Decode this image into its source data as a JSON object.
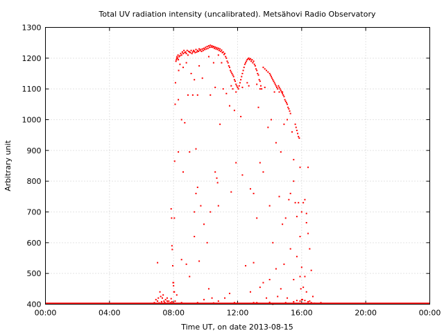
{
  "chart_data": {
    "type": "scatter",
    "title": "Total UV radiation intensity (uncalibrated). Metsähovi Radio Observatory",
    "xlabel": "Time UT, on date 2013-08-15",
    "ylabel": "Arbitrary unit",
    "xlim": [
      0,
      24
    ],
    "ylim": [
      400,
      1300
    ],
    "x_ticks": [
      0,
      4,
      8,
      12,
      16,
      20,
      24
    ],
    "x_tick_labels": [
      "00:00",
      "04:00",
      "08:00",
      "12:00",
      "16:00",
      "20:00",
      "00:00"
    ],
    "y_ticks": [
      400,
      500,
      600,
      700,
      800,
      900,
      1000,
      1100,
      1200,
      1300
    ],
    "grid": true,
    "series_color": "#ff0000",
    "baseline": {
      "x_start": 0,
      "x_end": 24,
      "value": 400
    },
    "points": [
      [
        6.8,
        405
      ],
      [
        6.9,
        415
      ],
      [
        7.0,
        410
      ],
      [
        7.05,
        420
      ],
      [
        7.1,
        404
      ],
      [
        7.15,
        440
      ],
      [
        7.2,
        425
      ],
      [
        7.25,
        408
      ],
      [
        7.3,
        402
      ],
      [
        7.35,
        430
      ],
      [
        7.4,
        410
      ],
      [
        7.45,
        406
      ],
      [
        7.5,
        415
      ],
      [
        7.55,
        402
      ],
      [
        7.6,
        420
      ],
      [
        7.65,
        404
      ],
      [
        7.7,
        410
      ],
      [
        7.75,
        402
      ],
      [
        7.8,
        405
      ],
      [
        7.85,
        418
      ],
      [
        7.9,
        408
      ],
      [
        7.95,
        402
      ],
      [
        8.0,
        404
      ],
      [
        8.05,
        440
      ],
      [
        8.1,
        410
      ],
      [
        8.15,
        402
      ],
      [
        7.0,
        535
      ],
      [
        7.3,
        420
      ],
      [
        7.6,
        410
      ],
      [
        7.85,
        710
      ],
      [
        7.88,
        680
      ],
      [
        7.9,
        590
      ],
      [
        7.92,
        578
      ],
      [
        7.95,
        525
      ],
      [
        7.97,
        470
      ],
      [
        8.0,
        460
      ],
      [
        8.02,
        440
      ],
      [
        8.05,
        680
      ],
      [
        8.07,
        865
      ],
      [
        8.1,
        1050
      ],
      [
        8.12,
        1120
      ],
      [
        8.15,
        1190
      ],
      [
        8.18,
        1195
      ],
      [
        8.2,
        1200
      ],
      [
        8.22,
        1205
      ],
      [
        8.25,
        1200
      ],
      [
        8.28,
        1210
      ],
      [
        8.3,
        1195
      ],
      [
        8.32,
        1160
      ],
      [
        8.35,
        1205
      ],
      [
        8.4,
        1208
      ],
      [
        8.45,
        1215
      ],
      [
        8.5,
        1210
      ],
      [
        8.55,
        1220
      ],
      [
        8.6,
        1215
      ],
      [
        8.65,
        1225
      ],
      [
        8.7,
        1218
      ],
      [
        8.75,
        1220
      ],
      [
        8.8,
        1215
      ],
      [
        8.85,
        1225
      ],
      [
        8.9,
        1210
      ],
      [
        8.95,
        1222
      ],
      [
        9.0,
        1220
      ],
      [
        9.05,
        1218
      ],
      [
        9.1,
        1225
      ],
      [
        9.15,
        1215
      ],
      [
        9.2,
        1220
      ],
      [
        9.25,
        1225
      ],
      [
        9.3,
        1222
      ],
      [
        9.35,
        1218
      ],
      [
        9.4,
        1228
      ],
      [
        9.45,
        1220
      ],
      [
        9.5,
        1225
      ],
      [
        9.55,
        1222
      ],
      [
        9.6,
        1230
      ],
      [
        9.65,
        1225
      ],
      [
        9.7,
        1228
      ],
      [
        9.75,
        1222
      ],
      [
        9.8,
        1230
      ],
      [
        9.85,
        1225
      ],
      [
        9.9,
        1232
      ],
      [
        9.95,
        1228
      ],
      [
        10.0,
        1235
      ],
      [
        10.05,
        1230
      ],
      [
        10.1,
        1238
      ],
      [
        10.15,
        1232
      ],
      [
        10.2,
        1240
      ],
      [
        10.25,
        1235
      ],
      [
        10.3,
        1242
      ],
      [
        10.35,
        1236
      ],
      [
        10.4,
        1240
      ],
      [
        10.45,
        1235
      ],
      [
        10.5,
        1238
      ],
      [
        10.55,
        1232
      ],
      [
        10.6,
        1236
      ],
      [
        10.65,
        1230
      ],
      [
        10.7,
        1234
      ],
      [
        10.75,
        1228
      ],
      [
        10.8,
        1232
      ],
      [
        10.85,
        1225
      ],
      [
        10.9,
        1230
      ],
      [
        10.95,
        1222
      ],
      [
        11.0,
        1226
      ],
      [
        11.05,
        1218
      ],
      [
        11.1,
        1220
      ],
      [
        11.15,
        1212
      ],
      [
        11.2,
        1215
      ],
      [
        11.25,
        1205
      ],
      [
        11.3,
        1200
      ],
      [
        11.35,
        1190
      ],
      [
        11.4,
        1185
      ],
      [
        11.45,
        1175
      ],
      [
        11.5,
        1170
      ],
      [
        11.55,
        1160
      ],
      [
        11.6,
        1155
      ],
      [
        11.65,
        1150
      ],
      [
        11.7,
        1145
      ],
      [
        11.75,
        1140
      ],
      [
        11.8,
        1130
      ],
      [
        11.85,
        1125
      ],
      [
        11.9,
        1115
      ],
      [
        11.95,
        1110
      ],
      [
        12.0,
        1105
      ],
      [
        12.05,
        1100
      ],
      [
        12.1,
        1110
      ],
      [
        12.15,
        1120
      ],
      [
        12.2,
        1130
      ],
      [
        12.25,
        1140
      ],
      [
        12.3,
        1150
      ],
      [
        12.35,
        1160
      ],
      [
        12.4,
        1170
      ],
      [
        12.45,
        1180
      ],
      [
        12.5,
        1185
      ],
      [
        12.55,
        1190
      ],
      [
        12.6,
        1195
      ],
      [
        12.65,
        1198
      ],
      [
        12.7,
        1200
      ],
      [
        12.75,
        1195
      ],
      [
        12.8,
        1198
      ],
      [
        12.85,
        1190
      ],
      [
        12.9,
        1195
      ],
      [
        12.95,
        1185
      ],
      [
        13.0,
        1190
      ],
      [
        13.05,
        1180
      ],
      [
        13.1,
        1175
      ],
      [
        13.15,
        1165
      ],
      [
        13.2,
        1160
      ],
      [
        13.25,
        1150
      ],
      [
        13.3,
        1145
      ],
      [
        13.35,
        1130
      ],
      [
        13.4,
        1125
      ],
      [
        13.45,
        1110
      ],
      [
        13.5,
        1100
      ],
      [
        11.6,
        1110
      ],
      [
        11.7,
        1100
      ],
      [
        11.9,
        1090
      ],
      [
        12.3,
        1105
      ],
      [
        12.6,
        1120
      ],
      [
        13.2,
        1115
      ],
      [
        13.4,
        1100
      ],
      [
        13.6,
        1170
      ],
      [
        13.7,
        1165
      ],
      [
        13.8,
        1160
      ],
      [
        13.9,
        1155
      ],
      [
        14.0,
        1150
      ],
      [
        14.05,
        1145
      ],
      [
        14.1,
        1140
      ],
      [
        14.15,
        1135
      ],
      [
        14.2,
        1130
      ],
      [
        14.25,
        1125
      ],
      [
        14.3,
        1120
      ],
      [
        14.35,
        1115
      ],
      [
        14.4,
        1110
      ],
      [
        14.45,
        1105
      ],
      [
        14.5,
        1100
      ],
      [
        14.55,
        1110
      ],
      [
        14.6,
        1105
      ],
      [
        14.65,
        1100
      ],
      [
        14.7,
        1095
      ],
      [
        14.75,
        1090
      ],
      [
        14.8,
        1085
      ],
      [
        14.85,
        1080
      ],
      [
        14.9,
        1075
      ],
      [
        14.95,
        1065
      ],
      [
        15.0,
        1060
      ],
      [
        15.05,
        1055
      ],
      [
        15.1,
        1050
      ],
      [
        15.15,
        1040
      ],
      [
        15.2,
        1035
      ],
      [
        15.25,
        1028
      ],
      [
        15.3,
        1020
      ],
      [
        14.3,
        1090
      ],
      [
        14.6,
        1090
      ],
      [
        14.8,
        1090
      ],
      [
        15.6,
        985
      ],
      [
        15.65,
        975
      ],
      [
        15.7,
        965
      ],
      [
        15.75,
        955
      ],
      [
        15.8,
        945
      ],
      [
        15.85,
        940
      ],
      [
        8.4,
        1180
      ],
      [
        8.6,
        1170
      ],
      [
        8.8,
        1185
      ],
      [
        9.1,
        1150
      ],
      [
        9.3,
        1130
      ],
      [
        9.6,
        1175
      ],
      [
        9.8,
        1135
      ],
      [
        10.2,
        1205
      ],
      [
        10.5,
        1185
      ],
      [
        10.8,
        1210
      ],
      [
        11.0,
        1185
      ],
      [
        8.3,
        1065
      ],
      [
        8.5,
        1000
      ],
      [
        8.7,
        990
      ],
      [
        8.9,
        1080
      ],
      [
        9.2,
        1080
      ],
      [
        9.4,
        905
      ],
      [
        9.5,
        1080
      ],
      [
        9.0,
        895
      ],
      [
        10.3,
        1080
      ],
      [
        10.6,
        1105
      ],
      [
        10.9,
        985
      ],
      [
        11.1,
        1100
      ],
      [
        11.3,
        1085
      ],
      [
        11.5,
        1045
      ],
      [
        11.8,
        1030
      ],
      [
        12.2,
        1010
      ],
      [
        12.7,
        1110
      ],
      [
        13.3,
        1040
      ],
      [
        13.7,
        1105
      ],
      [
        13.9,
        975
      ],
      [
        14.1,
        1000
      ],
      [
        14.4,
        925
      ],
      [
        14.7,
        895
      ],
      [
        14.9,
        985
      ],
      [
        15.1,
        1000
      ],
      [
        15.4,
        960
      ],
      [
        15.5,
        870
      ],
      [
        15.9,
        845
      ],
      [
        16.1,
        730
      ],
      [
        16.3,
        695
      ],
      [
        16.4,
        845
      ],
      [
        8.3,
        895
      ],
      [
        8.6,
        830
      ],
      [
        9.3,
        700
      ],
      [
        9.4,
        760
      ],
      [
        9.5,
        780
      ],
      [
        9.7,
        720
      ],
      [
        9.9,
        660
      ],
      [
        10.1,
        600
      ],
      [
        10.3,
        700
      ],
      [
        10.6,
        830
      ],
      [
        10.7,
        810
      ],
      [
        10.75,
        795
      ],
      [
        10.8,
        720
      ],
      [
        11.6,
        765
      ],
      [
        11.9,
        860
      ],
      [
        12.3,
        820
      ],
      [
        12.8,
        775
      ],
      [
        13.0,
        760
      ],
      [
        13.2,
        680
      ],
      [
        13.4,
        860
      ],
      [
        13.6,
        830
      ],
      [
        14.0,
        720
      ],
      [
        14.2,
        600
      ],
      [
        14.6,
        750
      ],
      [
        14.8,
        660
      ],
      [
        15.0,
        680
      ],
      [
        15.2,
        740
      ],
      [
        15.3,
        760
      ],
      [
        15.5,
        800
      ],
      [
        15.6,
        730
      ],
      [
        15.7,
        685
      ],
      [
        15.8,
        730
      ],
      [
        15.9,
        620
      ],
      [
        16.0,
        700
      ],
      [
        16.2,
        740
      ],
      [
        16.3,
        665
      ],
      [
        16.4,
        630
      ],
      [
        16.5,
        580
      ],
      [
        16.6,
        510
      ],
      [
        8.0,
        470
      ],
      [
        8.2,
        430
      ],
      [
        8.5,
        545
      ],
      [
        8.8,
        530
      ],
      [
        9.0,
        490
      ],
      [
        9.3,
        620
      ],
      [
        9.6,
        540
      ],
      [
        9.9,
        415
      ],
      [
        10.2,
        450
      ],
      [
        10.4,
        420
      ],
      [
        10.8,
        410
      ],
      [
        11.2,
        420
      ],
      [
        11.5,
        435
      ],
      [
        11.8,
        405
      ],
      [
        12.5,
        525
      ],
      [
        12.8,
        440
      ],
      [
        13.0,
        535
      ],
      [
        13.2,
        405
      ],
      [
        13.4,
        455
      ],
      [
        13.6,
        470
      ],
      [
        13.8,
        420
      ],
      [
        14.0,
        480
      ],
      [
        14.2,
        400
      ],
      [
        14.4,
        515
      ],
      [
        14.5,
        425
      ],
      [
        14.7,
        450
      ],
      [
        14.9,
        530
      ],
      [
        15.1,
        420
      ],
      [
        15.3,
        580
      ],
      [
        15.5,
        480
      ],
      [
        15.7,
        555
      ],
      [
        15.9,
        490
      ],
      [
        16.1,
        455
      ],
      [
        16.3,
        440
      ],
      [
        16.5,
        410
      ],
      [
        16.7,
        425
      ],
      [
        16.2,
        490
      ],
      [
        16.0,
        520
      ],
      [
        15.95,
        450
      ],
      [
        16.05,
        415
      ],
      [
        8.0,
        402
      ],
      [
        8.5,
        405
      ],
      [
        9.0,
        402
      ],
      [
        9.5,
        405
      ],
      [
        10.0,
        402
      ],
      [
        10.5,
        404
      ],
      [
        11.0,
        402
      ],
      [
        12.0,
        402
      ],
      [
        13.0,
        405
      ],
      [
        13.5,
        402
      ],
      [
        14.0,
        406
      ],
      [
        14.5,
        402
      ],
      [
        15.0,
        405
      ],
      [
        15.5,
        408
      ],
      [
        15.7,
        412
      ],
      [
        15.9,
        410
      ],
      [
        16.0,
        415
      ],
      [
        16.2,
        412
      ],
      [
        16.4,
        408
      ],
      [
        16.6,
        405
      ],
      [
        16.8,
        403
      ],
      [
        17.0,
        402
      ],
      [
        17.2,
        405
      ],
      [
        17.5,
        402
      ]
    ]
  }
}
